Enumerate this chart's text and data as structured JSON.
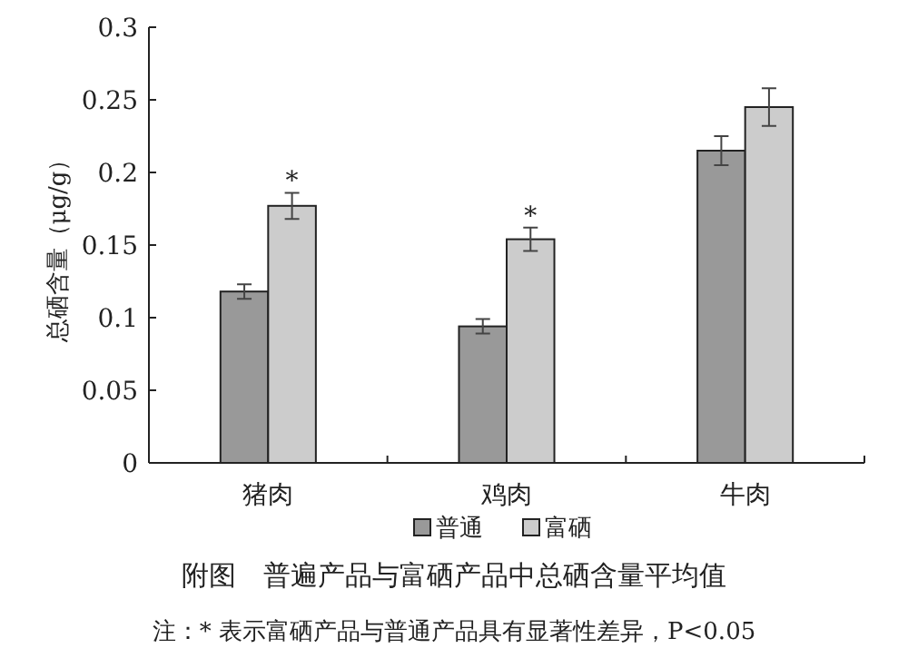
{
  "chart_data": {
    "type": "bar",
    "ylabel": "总硒含量（μg/g）",
    "categories": [
      "猪肉",
      "鸡肉",
      "牛肉"
    ],
    "series": [
      {
        "name": "普通",
        "color": "#999999",
        "values": [
          0.118,
          0.094,
          0.215
        ],
        "errors": [
          0.005,
          0.005,
          0.01
        ]
      },
      {
        "name": "富硒",
        "color": "#cccccc",
        "values": [
          0.177,
          0.154,
          0.245
        ],
        "errors": [
          0.009,
          0.008,
          0.013
        ]
      }
    ],
    "ylim": [
      0,
      0.3
    ],
    "yticks": [
      0,
      0.05,
      0.1,
      0.15,
      0.2,
      0.25,
      0.3
    ],
    "legend": "bottom",
    "grid": false,
    "annotations": [
      {
        "text": "*",
        "x": "猪肉",
        "y": 0.177
      },
      {
        "text": "*",
        "x": "鸡肉",
        "y": 0.154
      },
      "附图　普遍产品与富硒产品中总硒含量平均值",
      "注：* 表示富硒产品与普通产品具有显著性差异，P<0.05"
    ]
  }
}
